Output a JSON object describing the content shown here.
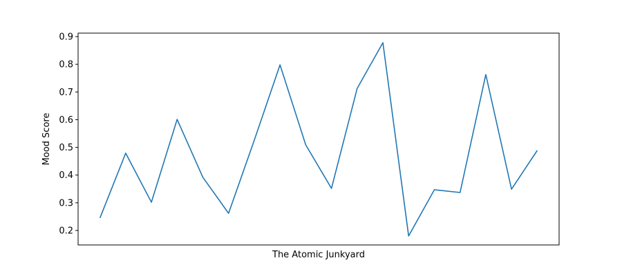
{
  "chart_data": {
    "type": "line",
    "xlabel": "The Atomic Junkyard",
    "ylabel": "Mood Score",
    "categories": [
      null,
      null,
      null,
      null,
      null,
      null,
      null,
      null,
      null,
      null,
      null,
      null,
      null,
      null,
      null,
      null,
      null,
      null
    ],
    "values": [
      0.245,
      0.479,
      0.302,
      0.601,
      0.392,
      0.262,
      0.526,
      0.798,
      0.509,
      0.352,
      0.713,
      0.878,
      0.18,
      0.347,
      0.337,
      0.763,
      0.349,
      0.489
    ],
    "color": "#1f77b4",
    "ylim": [
      0.1477,
      0.9125
    ],
    "yticks": [
      0.2,
      0.3,
      0.4,
      0.5,
      0.6,
      0.7,
      0.8,
      0.9
    ],
    "grid": false
  }
}
